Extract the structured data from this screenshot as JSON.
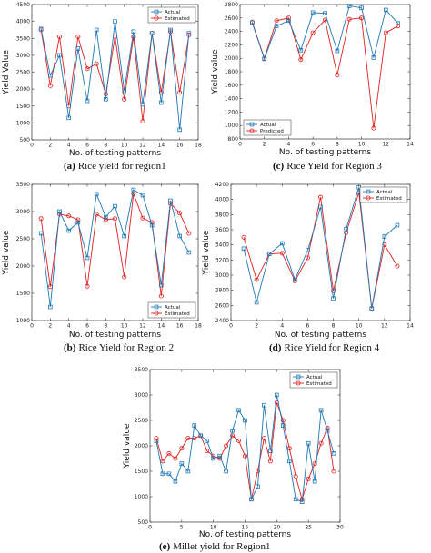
{
  "colors": {
    "actual": "#1f77b4",
    "estimated": "#e02020",
    "axis": "#333333",
    "tick": "#222222"
  },
  "chart_data": [
    {
      "id": "a",
      "type": "line",
      "caption_label": "(a)",
      "caption_text": "Rice yield for region1",
      "xlabel": "No. of testing patterns",
      "ylabel": "Yield Value",
      "xlim": [
        0,
        18
      ],
      "ylim": [
        500,
        4500
      ],
      "xticks": [
        0,
        2,
        4,
        6,
        8,
        10,
        12,
        14,
        16,
        18
      ],
      "yticks": [
        500,
        1000,
        1500,
        2000,
        2500,
        3000,
        3500,
        4000,
        4500
      ],
      "legend_pos": "top-right",
      "x": [
        1,
        2,
        3,
        4,
        5,
        6,
        7,
        8,
        9,
        10,
        11,
        12,
        13,
        14,
        15,
        16,
        17
      ],
      "series": [
        {
          "name": "Actual",
          "marker": "square",
          "values": [
            3780,
            2400,
            3000,
            1150,
            3200,
            1650,
            3750,
            1700,
            4000,
            1950,
            3700,
            1550,
            3650,
            1600,
            3750,
            800,
            3650
          ]
        },
        {
          "name": "Estimated",
          "marker": "circle",
          "values": [
            3750,
            2100,
            3550,
            1500,
            3550,
            2600,
            2750,
            1850,
            3550,
            1700,
            3550,
            1050,
            3650,
            1900,
            3700,
            1900,
            3600
          ]
        }
      ]
    },
    {
      "id": "c",
      "type": "line",
      "caption_label": "(c)",
      "caption_text": "Rice Yield for Region 3",
      "xlabel": "No. of testing patterns",
      "ylabel": "Yield value",
      "xlim": [
        0,
        14
      ],
      "ylim": [
        800,
        2800
      ],
      "xticks": [
        0,
        2,
        4,
        6,
        8,
        10,
        12,
        14
      ],
      "yticks": [
        800,
        1000,
        1200,
        1400,
        1600,
        1800,
        2000,
        2200,
        2400,
        2600,
        2800
      ],
      "legend_pos": "bottom-left",
      "x": [
        1,
        2,
        3,
        4,
        5,
        6,
        7,
        8,
        9,
        10,
        11,
        12,
        13
      ],
      "series": [
        {
          "name": "Actual",
          "marker": "square",
          "values": [
            2530,
            1990,
            2480,
            2560,
            2120,
            2680,
            2670,
            2110,
            2780,
            2750,
            2010,
            2720,
            2520
          ]
        },
        {
          "name": "Predicted",
          "marker": "circle",
          "values": [
            2540,
            2000,
            2560,
            2600,
            1980,
            2380,
            2570,
            1750,
            2580,
            2600,
            960,
            2380,
            2480
          ]
        }
      ]
    },
    {
      "id": "b",
      "type": "line",
      "caption_label": "(b)",
      "caption_text": "Rice Yield for Region 2",
      "xlabel": "No. of testing patterns",
      "ylabel": "Yield value",
      "xlim": [
        0,
        18
      ],
      "ylim": [
        1000,
        3500
      ],
      "xticks": [
        0,
        2,
        4,
        6,
        8,
        10,
        12,
        14,
        16,
        18
      ],
      "yticks": [
        1000,
        1500,
        2000,
        2500,
        3000,
        3500
      ],
      "legend_pos": "bottom-right",
      "x": [
        1,
        2,
        3,
        4,
        5,
        6,
        7,
        8,
        9,
        10,
        11,
        12,
        13,
        14,
        15,
        16,
        17
      ],
      "series": [
        {
          "name": "Actual",
          "marker": "square",
          "values": [
            2600,
            1250,
            3000,
            2650,
            2800,
            2150,
            3320,
            2900,
            3100,
            2550,
            3400,
            3300,
            2750,
            1650,
            3200,
            2550,
            2250
          ]
        },
        {
          "name": "Estimated",
          "marker": "circle",
          "values": [
            2870,
            1620,
            2950,
            2920,
            2850,
            1630,
            2950,
            2850,
            2870,
            1800,
            3330,
            2880,
            2800,
            1450,
            3150,
            2970,
            2600
          ]
        }
      ]
    },
    {
      "id": "d",
      "type": "line",
      "caption_label": "(d)",
      "caption_text": "Rice Yield for Region 4",
      "xlabel": "No. of testing patterns",
      "ylabel": "Yield value",
      "xlim": [
        0,
        14
      ],
      "ylim": [
        2400,
        4200
      ],
      "xticks": [
        0,
        2,
        4,
        6,
        8,
        10,
        12,
        14
      ],
      "yticks": [
        2400,
        2600,
        2800,
        3000,
        3200,
        3400,
        3600,
        3800,
        4000,
        4200
      ],
      "legend_pos": "top-right",
      "x": [
        1,
        2,
        3,
        4,
        5,
        6,
        7,
        8,
        9,
        10,
        11,
        12,
        13
      ],
      "series": [
        {
          "name": "Actual",
          "marker": "square",
          "values": [
            3350,
            2640,
            3280,
            3420,
            2940,
            3330,
            3900,
            2690,
            3610,
            4160,
            2560,
            3510,
            3660
          ]
        },
        {
          "name": "Estimated",
          "marker": "circle",
          "values": [
            3500,
            2940,
            3280,
            3290,
            2920,
            3230,
            4030,
            2790,
            3560,
            4090,
            2560,
            3400,
            3120
          ]
        }
      ]
    },
    {
      "id": "e",
      "type": "line",
      "caption_label": "(e)",
      "caption_text": "Millet yield for Region1",
      "xlabel": "No. of testing patterns",
      "ylabel": "Yield value",
      "xlim": [
        0,
        30
      ],
      "ylim": [
        500,
        3500
      ],
      "xticks": [
        0,
        5,
        10,
        15,
        20,
        25,
        30
      ],
      "yticks": [
        500,
        1000,
        1500,
        2000,
        2500,
        3000,
        3500
      ],
      "legend_pos": "top-right",
      "x": [
        1,
        2,
        3,
        4,
        5,
        6,
        7,
        8,
        9,
        10,
        11,
        12,
        13,
        14,
        15,
        16,
        17,
        18,
        19,
        20,
        21,
        22,
        23,
        24,
        25,
        26,
        27,
        28,
        29
      ],
      "series": [
        {
          "name": "Actual",
          "marker": "square",
          "values": [
            2100,
            1450,
            1450,
            1300,
            1650,
            1500,
            2400,
            2200,
            2100,
            1750,
            1800,
            1500,
            2300,
            2700,
            2500,
            950,
            1200,
            2800,
            1900,
            3000,
            2400,
            1700,
            950,
            900,
            2050,
            1300,
            2700,
            2300,
            1850
          ]
        },
        {
          "name": "Estimated",
          "marker": "circle",
          "values": [
            2150,
            1700,
            1850,
            1750,
            1950,
            2150,
            2150,
            2200,
            1900,
            1800,
            1750,
            2000,
            2200,
            2100,
            1800,
            950,
            1500,
            2150,
            1700,
            2850,
            2500,
            1950,
            1400,
            950,
            1350,
            1650,
            2050,
            2350,
            1500
          ]
        }
      ]
    }
  ]
}
